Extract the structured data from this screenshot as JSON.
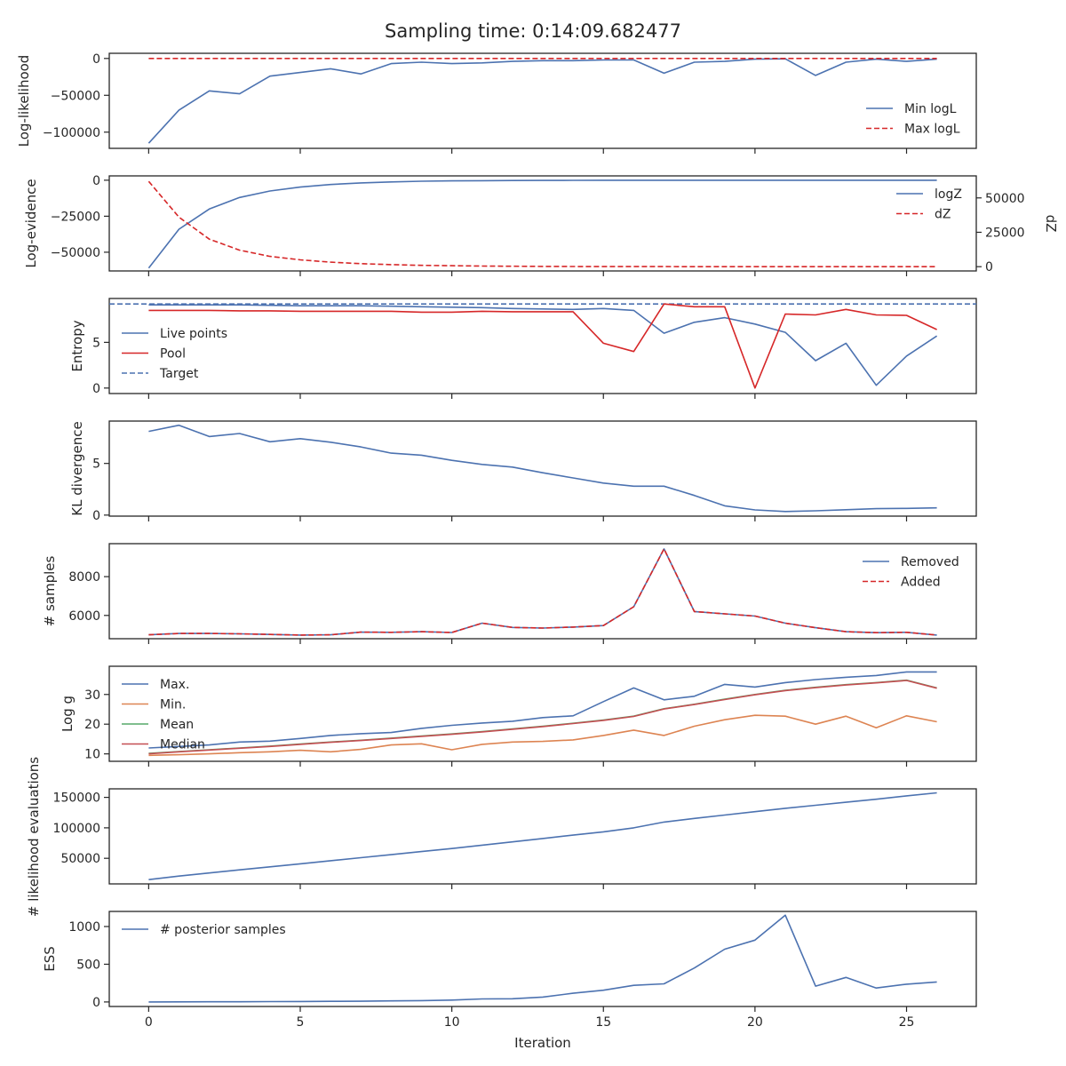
{
  "figure": {
    "title": "Sampling time: 0:14:09.682477",
    "xlabel": "Iteration"
  },
  "chart_data": [
    {
      "id": "loglik",
      "type": "line",
      "ylabel": "Log-likelihood",
      "xlim": [
        -1.3,
        27.3
      ],
      "ylim": [
        -122000,
        7000
      ],
      "yticks": [
        0,
        -50000,
        -100000
      ],
      "ytick_labels": [
        "0",
        "−50000",
        "−100000"
      ],
      "legend": "lower-right",
      "x": [
        0,
        1,
        2,
        3,
        4,
        5,
        6,
        7,
        8,
        9,
        10,
        11,
        12,
        13,
        14,
        15,
        16,
        17,
        18,
        19,
        20,
        21,
        22,
        23,
        24,
        25,
        26
      ],
      "series": [
        {
          "name": "Min logL",
          "color": "#4c72b0",
          "dash": "solid",
          "values": [
            -115000,
            -70000,
            -44000,
            -48000,
            -24000,
            -19000,
            -14000,
            -21000,
            -7000,
            -5000,
            -7000,
            -6000,
            -4000,
            -3000,
            -3000,
            -2000,
            -2000,
            -20000,
            -5000,
            -4000,
            -1000,
            -500,
            -23000,
            -5000,
            -1000,
            -4000,
            -1000
          ]
        },
        {
          "name": "Max logL",
          "color": "#d62728",
          "dash": "dashed",
          "values": [
            0,
            0,
            0,
            0,
            0,
            0,
            0,
            0,
            0,
            0,
            0,
            0,
            0,
            0,
            0,
            0,
            0,
            0,
            0,
            0,
            0,
            0,
            0,
            0,
            0,
            0,
            0
          ]
        }
      ]
    },
    {
      "id": "logevidence",
      "type": "line",
      "ylabel": "Log-evidence",
      "ylabel_right": "dZ",
      "ylim": [
        -63000,
        3000
      ],
      "yticks": [
        0,
        -25000,
        -50000
      ],
      "ytick_labels": [
        "0",
        "−25000",
        "−50000"
      ],
      "ylim_right": [
        -3100,
        66000
      ],
      "yticks_right": [
        0,
        25000,
        50000
      ],
      "ytick_labels_right": [
        "0",
        "25000",
        "50000"
      ],
      "legend": "upper-right",
      "x": [
        0,
        1,
        2,
        3,
        4,
        5,
        6,
        7,
        8,
        9,
        10,
        11,
        12,
        13,
        14,
        15,
        16,
        17,
        18,
        19,
        20,
        21,
        22,
        23,
        24,
        25,
        26
      ],
      "series": [
        {
          "name": "logZ",
          "color": "#4c72b0",
          "dash": "solid",
          "axis": "left",
          "values": [
            -61000,
            -34000,
            -20000,
            -12000,
            -7500,
            -4800,
            -3000,
            -1900,
            -1200,
            -700,
            -450,
            -300,
            -200,
            -120,
            -80,
            -50,
            -30,
            -20,
            -12,
            -8,
            -5,
            -3,
            -2,
            -1,
            -1,
            0,
            0
          ]
        },
        {
          "name": "dZ",
          "color": "#d62728",
          "dash": "dashed",
          "axis": "right",
          "values": [
            62000,
            36000,
            20000,
            12000,
            7500,
            5000,
            3300,
            2200,
            1500,
            1000,
            700,
            450,
            300,
            200,
            130,
            90,
            60,
            40,
            25,
            15,
            10,
            6,
            4,
            3,
            2,
            1,
            1
          ]
        }
      ]
    },
    {
      "id": "entropy",
      "type": "line",
      "ylabel": "Entropy",
      "ylim": [
        -0.6,
        9.8
      ],
      "yticks": [
        0,
        5
      ],
      "ytick_labels": [
        "0",
        "5"
      ],
      "legend": "center-left",
      "x": [
        0,
        1,
        2,
        3,
        4,
        5,
        6,
        7,
        8,
        9,
        10,
        11,
        12,
        13,
        14,
        15,
        16,
        17,
        18,
        19,
        20,
        21,
        22,
        23,
        24,
        25,
        26
      ],
      "hline": {
        "name": "Target",
        "value": 9.2,
        "color": "#4c72b0"
      },
      "series": [
        {
          "name": "Live points",
          "color": "#4c72b0",
          "dash": "solid",
          "values": [
            9.1,
            9.1,
            9.1,
            9.1,
            9.05,
            9.0,
            9.0,
            9.0,
            8.95,
            8.9,
            8.85,
            8.8,
            8.7,
            8.65,
            8.6,
            8.7,
            8.5,
            6.0,
            7.2,
            7.7,
            7.0,
            6.1,
            3.0,
            4.9,
            0.3,
            3.5,
            5.7
          ]
        },
        {
          "name": "Pool",
          "color": "#d62728",
          "dash": "solid",
          "values": [
            8.5,
            8.5,
            8.5,
            8.45,
            8.45,
            8.4,
            8.4,
            8.4,
            8.4,
            8.3,
            8.3,
            8.4,
            8.35,
            8.35,
            8.35,
            4.9,
            4.0,
            9.2,
            8.9,
            8.9,
            0.0,
            8.1,
            8.0,
            8.6,
            8.0,
            7.95,
            6.4
          ]
        }
      ]
    },
    {
      "id": "kl",
      "type": "line",
      "ylabel": "KL divergence",
      "ylim": [
        -0.1,
        9.1
      ],
      "yticks": [
        0,
        5
      ],
      "ytick_labels": [
        "0",
        "5"
      ],
      "x": [
        0,
        1,
        2,
        3,
        4,
        5,
        6,
        7,
        8,
        9,
        10,
        11,
        12,
        13,
        14,
        15,
        16,
        17,
        18,
        19,
        20,
        21,
        22,
        23,
        24,
        25,
        26
      ],
      "series": [
        {
          "name": "",
          "color": "#4c72b0",
          "dash": "solid",
          "values": [
            8.1,
            8.7,
            7.6,
            7.9,
            7.1,
            7.4,
            7.05,
            6.6,
            6.0,
            5.8,
            5.3,
            4.9,
            4.65,
            4.1,
            3.6,
            3.1,
            2.8,
            2.8,
            1.9,
            0.9,
            0.5,
            0.35,
            0.42,
            0.52,
            0.62,
            0.65,
            0.7
          ]
        }
      ]
    },
    {
      "id": "samples",
      "type": "line",
      "ylabel": "# samples",
      "ylim": [
        4800,
        9700
      ],
      "yticks": [
        6000,
        8000
      ],
      "ytick_labels": [
        "6000",
        "8000"
      ],
      "legend": "upper-right",
      "x": [
        0,
        1,
        2,
        3,
        4,
        5,
        6,
        7,
        8,
        9,
        10,
        11,
        12,
        13,
        14,
        15,
        16,
        17,
        18,
        19,
        20,
        21,
        22,
        23,
        24,
        25,
        26
      ],
      "series": [
        {
          "name": "Removed",
          "color": "#4c72b0",
          "dash": "solid",
          "values": [
            5000,
            5070,
            5070,
            5050,
            5020,
            4990,
            5000,
            5140,
            5130,
            5160,
            5120,
            5600,
            5380,
            5350,
            5400,
            5480,
            6450,
            9430,
            6200,
            6080,
            5970,
            5600,
            5370,
            5160,
            5110,
            5130,
            4990
          ]
        },
        {
          "name": "Added",
          "color": "#d62728",
          "dash": "dashed",
          "values": [
            5000,
            5070,
            5070,
            5050,
            5020,
            4990,
            5000,
            5140,
            5130,
            5160,
            5120,
            5600,
            5380,
            5350,
            5400,
            5480,
            6450,
            9430,
            6200,
            6080,
            5970,
            5600,
            5370,
            5160,
            5110,
            5130,
            4990
          ]
        }
      ]
    },
    {
      "id": "logg",
      "type": "line",
      "ylabel": "Log g",
      "ylim": [
        7.5,
        39.5
      ],
      "yticks": [
        10,
        20,
        30
      ],
      "ytick_labels": [
        "10",
        "20",
        "30"
      ],
      "legend": "upper-left",
      "x": [
        0,
        1,
        2,
        3,
        4,
        5,
        6,
        7,
        8,
        9,
        10,
        11,
        12,
        13,
        14,
        15,
        16,
        17,
        18,
        19,
        20,
        21,
        22,
        23,
        24,
        25,
        26
      ],
      "series": [
        {
          "name": "Max.",
          "color": "#4c72b0",
          "dash": "solid",
          "values": [
            12.0,
            12.5,
            13.0,
            14.0,
            14.3,
            15.2,
            16.2,
            16.8,
            17.2,
            18.6,
            19.6,
            20.4,
            21.0,
            22.2,
            22.8,
            27.6,
            32.2,
            28.2,
            29.4,
            33.4,
            32.5,
            34.0,
            35.0,
            35.8,
            36.4,
            37.6,
            37.6
          ]
        },
        {
          "name": "Min.",
          "color": "#dd8452",
          "dash": "solid",
          "values": [
            9.5,
            9.7,
            10.0,
            10.4,
            10.7,
            11.2,
            10.7,
            11.5,
            13.0,
            13.4,
            11.4,
            13.2,
            14.0,
            14.2,
            14.7,
            16.2,
            18.0,
            16.2,
            19.3,
            21.5,
            23.0,
            22.7,
            20.0,
            22.7,
            18.8,
            22.8,
            20.8
          ]
        },
        {
          "name": "Mean",
          "color": "#55a868",
          "dash": "solid",
          "values": [
            10.2,
            10.8,
            11.4,
            12.0,
            12.6,
            13.3,
            14.0,
            14.6,
            15.3,
            16.0,
            16.7,
            17.5,
            18.4,
            19.3,
            20.3,
            21.4,
            22.7,
            25.2,
            26.7,
            28.4,
            30.0,
            31.4,
            32.4,
            33.3,
            34.0,
            34.8,
            32.2
          ]
        },
        {
          "name": "Median",
          "color": "#c44e52",
          "dash": "solid",
          "values": [
            10.0,
            10.7,
            11.3,
            11.9,
            12.5,
            13.2,
            13.9,
            14.5,
            15.2,
            15.9,
            16.6,
            17.4,
            18.3,
            19.2,
            20.2,
            21.3,
            22.6,
            25.1,
            26.6,
            28.3,
            29.9,
            31.3,
            32.3,
            33.2,
            33.9,
            34.7,
            32.1
          ]
        }
      ]
    },
    {
      "id": "likeval",
      "type": "line",
      "ylabel": "# likelihood evaluations",
      "ylim": [
        8000,
        164000
      ],
      "yticks": [
        50000,
        100000,
        150000
      ],
      "ytick_labels": [
        "50000",
        "100000",
        "150000"
      ],
      "x": [
        0,
        1,
        2,
        3,
        4,
        5,
        6,
        7,
        8,
        9,
        10,
        11,
        12,
        13,
        14,
        15,
        16,
        17,
        18,
        19,
        20,
        21,
        22,
        23,
        24,
        25,
        26
      ],
      "series": [
        {
          "name": "",
          "color": "#4c72b0",
          "dash": "solid",
          "values": [
            15000,
            20800,
            26000,
            31000,
            36000,
            41000,
            46000,
            51000,
            56000,
            61000,
            66000,
            71500,
            77000,
            82500,
            88000,
            93500,
            100000,
            109500,
            115500,
            121000,
            126500,
            132000,
            137000,
            142000,
            147000,
            152500,
            157500
          ]
        }
      ]
    },
    {
      "id": "ess",
      "type": "line",
      "ylabel": "ESS",
      "ylim": [
        -60,
        1200
      ],
      "yticks": [
        0,
        500,
        1000
      ],
      "ytick_labels": [
        "0",
        "500",
        "1000"
      ],
      "legend": "upper-left",
      "x": [
        0,
        1,
        2,
        3,
        4,
        5,
        6,
        7,
        8,
        9,
        10,
        11,
        12,
        13,
        14,
        15,
        16,
        17,
        18,
        19,
        20,
        21,
        22,
        23,
        24,
        25,
        26
      ],
      "xticks": [
        0,
        5,
        10,
        15,
        20,
        25
      ],
      "xtick_labels": [
        "0",
        "5",
        "10",
        "15",
        "20",
        "25"
      ],
      "series": [
        {
          "name": "# posterior samples",
          "color": "#4c72b0",
          "dash": "solid",
          "values": [
            0,
            1,
            2,
            3,
            5,
            6,
            8,
            10,
            14,
            18,
            25,
            40,
            42,
            65,
            115,
            155,
            220,
            240,
            450,
            700,
            820,
            1150,
            210,
            325,
            185,
            235,
            265
          ]
        }
      ]
    }
  ]
}
